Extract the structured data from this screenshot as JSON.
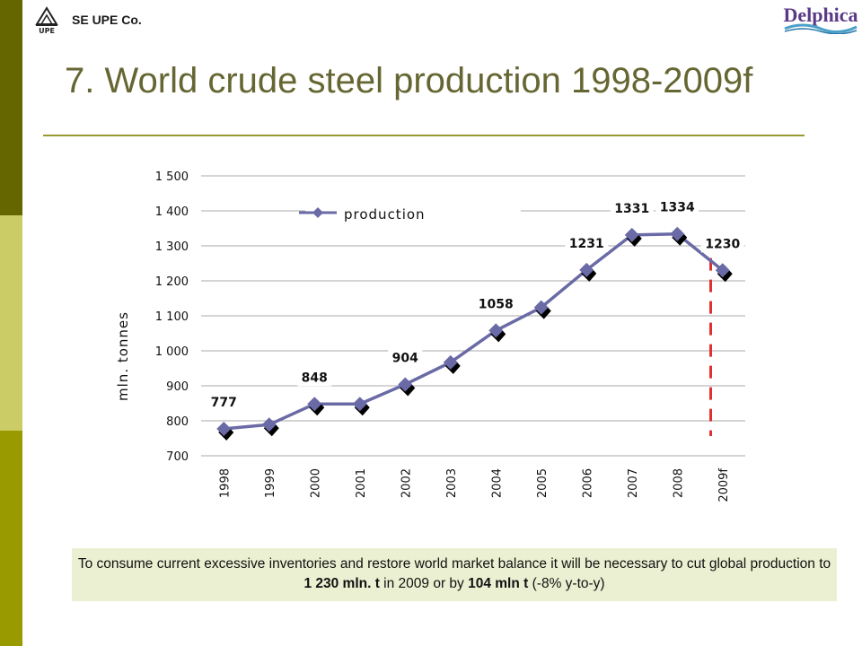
{
  "header": {
    "company": "SE UPE Co.",
    "company_logo_text": "UPE",
    "brand": "Delphica"
  },
  "title": "7. World crude steel production 1998-2009f",
  "colors": {
    "title": "#666633",
    "line": "#6a6aa6",
    "marker": "#6a6aa6",
    "forecast_divider": "#e03030",
    "note_bg": "#ebf0d2"
  },
  "chart_data": {
    "type": "line",
    "categories": [
      "1998",
      "1999",
      "2000",
      "2001",
      "2002",
      "2003",
      "2004",
      "2005",
      "2006",
      "2007",
      "2008",
      "2009f"
    ],
    "series": [
      {
        "name": "production",
        "values": [
          777,
          789,
          848,
          848,
          904,
          967,
          1058,
          1124,
          1231,
          1331,
          1334,
          1230
        ]
      }
    ],
    "data_labels": [
      {
        "category": "1998",
        "text": "777"
      },
      {
        "category": "2000",
        "text": "848"
      },
      {
        "category": "2002",
        "text": "904"
      },
      {
        "category": "2004",
        "text": "1058"
      },
      {
        "category": "2006",
        "text": "1231"
      },
      {
        "category": "2007",
        "text": "1331"
      },
      {
        "category": "2008",
        "text": "1334"
      },
      {
        "category": "2009f",
        "text": "1230"
      }
    ],
    "ylabel": "mln. tonnes",
    "ylim": [
      700,
      1500
    ],
    "yticks": [
      {
        "value": 700,
        "label": "700"
      },
      {
        "value": 800,
        "label": "800"
      },
      {
        "value": 900,
        "label": "900"
      },
      {
        "value": 1000,
        "label": "1 000"
      },
      {
        "value": 1100,
        "label": "1 100"
      },
      {
        "value": 1200,
        "label": "1 200"
      },
      {
        "value": 1300,
        "label": "1 300"
      },
      {
        "value": 1400,
        "label": "1 400"
      },
      {
        "value": 1500,
        "label": "1 500"
      }
    ],
    "grid": true,
    "legend_position": "top-center",
    "forecast_divider_between": [
      "2008",
      "2009f"
    ]
  },
  "note": {
    "part1": "To consume current excessive inventories and restore world market balance it will be necessary to cut global production to ",
    "bold1": "1 230 mln. t",
    "part2": "  in 2009 or by ",
    "bold2": "104 mln t",
    "part3": " (-8% y-to-y)"
  }
}
